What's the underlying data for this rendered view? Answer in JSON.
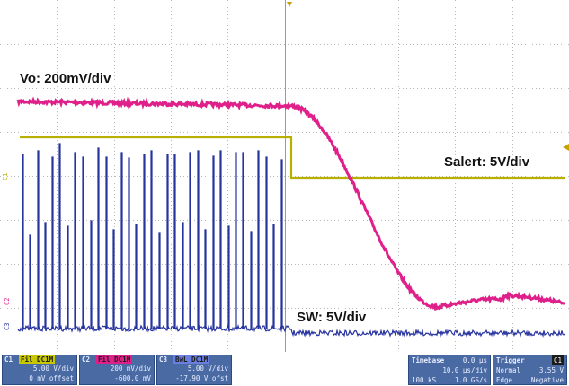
{
  "labels": {
    "vo": "Vo: 200mV/div",
    "salert": "Salert: 5V/div",
    "sw": "SW: 5V/div"
  },
  "channel_markers": {
    "c1": "C1",
    "c2": "C2",
    "c3": "C3"
  },
  "channels": [
    {
      "num": "C1",
      "tag": "Fil DC1M",
      "line1": "5.00 V/div",
      "line2": "0 mV offset",
      "accent": "#c8c800"
    },
    {
      "num": "C2",
      "tag": "Fil DC1M",
      "line1": "200 mV/div",
      "line2": "-600.0 mV",
      "accent": "#e0208a"
    },
    {
      "num": "C3",
      "tag": "BwL DC1M",
      "line1": "5.00 V/div",
      "line2": "-17.90 V ofst",
      "accent": "#3a4ec0"
    }
  ],
  "timebase": {
    "title": "Timebase",
    "delay": "0.0 µs",
    "div": "10.0 µs/div",
    "samples": "100 kS",
    "rate": "1.0 GS/s"
  },
  "trigger": {
    "title": "Trigger",
    "badge": "C1",
    "mode": "Normal",
    "level": "3.55 V",
    "type": "Edge",
    "slope": "Negative"
  },
  "colors": {
    "vo": "#e0208a",
    "salert": "#b8b000",
    "sw": "#27339e",
    "grid": "#b8b8b8",
    "panel": "#4a6aa4"
  }
}
